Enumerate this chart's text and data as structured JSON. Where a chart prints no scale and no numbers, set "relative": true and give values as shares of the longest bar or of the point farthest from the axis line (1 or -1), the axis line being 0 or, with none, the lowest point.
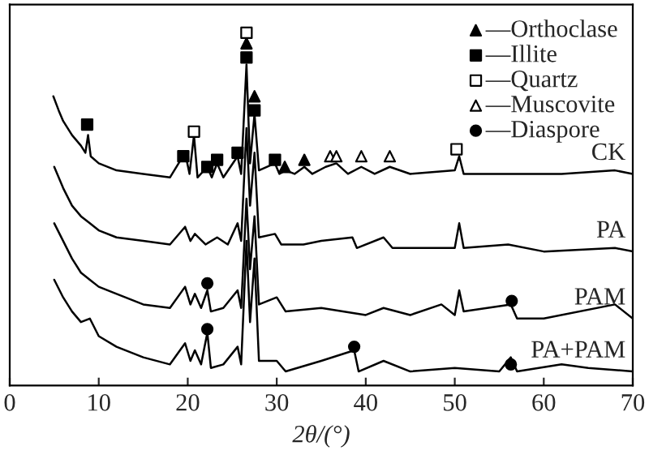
{
  "chart_data": {
    "type": "line",
    "relative": true,
    "xlabel": "2θ/(°)",
    "xlim": [
      0,
      70
    ],
    "xticks": [
      0,
      10,
      20,
      30,
      40,
      50,
      60,
      70
    ],
    "legend": "top right",
    "grid": false,
    "line_style": "solid",
    "series": [
      {
        "name": "CK",
        "color": "#000000",
        "marker": "none",
        "x": [
          4.9,
          5.5,
          6,
          7,
          8,
          8.5,
          8.8,
          9.1,
          10,
          12,
          15,
          18,
          19.7,
          20.2,
          20.7,
          21.1,
          22.2,
          22.7,
          23.3,
          24,
          25.6,
          26,
          26.6,
          27.0,
          27.5,
          28,
          29.8,
          30.3,
          31,
          32,
          33.1,
          34,
          35.5,
          36.7,
          38,
          39.5,
          41,
          42.7,
          45,
          50,
          50.5,
          51,
          55,
          60,
          62,
          68,
          70
        ],
        "values": [
          0.82,
          0.78,
          0.75,
          0.71,
          0.68,
          0.66,
          0.71,
          0.65,
          0.63,
          0.61,
          0.6,
          0.59,
          0.66,
          0.6,
          0.71,
          0.59,
          0.62,
          0.59,
          0.63,
          0.59,
          0.65,
          0.6,
          0.91,
          0.63,
          0.77,
          0.61,
          0.63,
          0.6,
          0.61,
          0.6,
          0.62,
          0.6,
          0.62,
          0.63,
          0.6,
          0.62,
          0.6,
          0.62,
          0.6,
          0.61,
          0.65,
          0.6,
          0.6,
          0.6,
          0.6,
          0.61,
          0.6
        ]
      },
      {
        "name": "PA",
        "color": "#000000",
        "marker": "none",
        "x": [
          5,
          6,
          7,
          8,
          9,
          10,
          12,
          15,
          18,
          19.7,
          20.3,
          20.8,
          22,
          23.3,
          24.5,
          25.6,
          26,
          26.6,
          27,
          27.5,
          28,
          29.8,
          30.5,
          33,
          35,
          38.5,
          39,
          42,
          43,
          50,
          50.5,
          51,
          56,
          60,
          68,
          70
        ],
        "values": [
          0.62,
          0.56,
          0.51,
          0.48,
          0.46,
          0.44,
          0.42,
          0.41,
          0.4,
          0.45,
          0.41,
          0.43,
          0.4,
          0.42,
          0.4,
          0.46,
          0.41,
          0.73,
          0.51,
          0.66,
          0.42,
          0.43,
          0.4,
          0.4,
          0.41,
          0.42,
          0.39,
          0.42,
          0.39,
          0.39,
          0.46,
          0.39,
          0.4,
          0.38,
          0.39,
          0.38
        ]
      },
      {
        "name": "PAM",
        "color": "#000000",
        "marker": "none",
        "x": [
          5,
          6,
          7,
          8,
          9,
          10,
          12,
          15,
          18,
          19.7,
          20.3,
          20.8,
          21.5,
          22.2,
          22.6,
          24,
          25.6,
          26,
          26.6,
          27,
          27.5,
          28,
          30,
          31,
          35,
          40,
          42,
          45,
          48.5,
          50,
          50.5,
          51,
          56.3,
          57,
          60,
          68,
          70
        ],
        "values": [
          0.46,
          0.41,
          0.36,
          0.32,
          0.3,
          0.28,
          0.26,
          0.23,
          0.22,
          0.28,
          0.23,
          0.26,
          0.22,
          0.27,
          0.21,
          0.22,
          0.27,
          0.22,
          0.53,
          0.33,
          0.48,
          0.23,
          0.25,
          0.21,
          0.22,
          0.2,
          0.22,
          0.2,
          0.23,
          0.2,
          0.27,
          0.21,
          0.23,
          0.19,
          0.19,
          0.23,
          0.19
        ]
      },
      {
        "name": "PA+PAM",
        "color": "#000000",
        "marker": "none",
        "x": [
          5,
          6,
          7,
          8,
          9,
          10,
          12,
          15,
          18,
          19.7,
          20.3,
          20.8,
          21.5,
          22.2,
          22.6,
          24,
          25.6,
          26,
          26.6,
          27,
          27.5,
          28,
          30,
          31,
          35,
          38.7,
          39.2,
          42,
          45,
          50,
          55,
          56.3,
          57,
          62,
          65,
          70
        ],
        "values": [
          0.3,
          0.25,
          0.21,
          0.18,
          0.19,
          0.14,
          0.11,
          0.08,
          0.06,
          0.12,
          0.07,
          0.1,
          0.06,
          0.15,
          0.05,
          0.06,
          0.11,
          0.06,
          0.41,
          0.18,
          0.36,
          0.07,
          0.07,
          0.04,
          0.07,
          0.1,
          0.04,
          0.07,
          0.04,
          0.05,
          0.04,
          0.08,
          0.04,
          0.06,
          0.05,
          0.04
        ]
      },
      {
        "name": "—Orthoclase",
        "type": "scatter",
        "color": "#000000",
        "marker": "triangle",
        "x": [
          26.6,
          27.5,
          30.9,
          33.1
        ],
        "values": [
          0.97,
          0.82,
          0.62,
          0.64
        ]
      },
      {
        "name": "—Illite",
        "type": "scatter",
        "color": "#000000",
        "marker": "square",
        "x": [
          8.7,
          19.5,
          22.2,
          23.3,
          25.6,
          26.6,
          27.5,
          29.8
        ],
        "values": [
          0.74,
          0.65,
          0.62,
          0.64,
          0.66,
          0.93,
          0.78,
          0.64
        ]
      },
      {
        "name": "—Quartz",
        "type": "scatter",
        "color": "#ffffff",
        "marker": "square",
        "x": [
          20.7,
          26.6,
          50.2
        ],
        "values": [
          0.72,
          1.0,
          0.67
        ]
      },
      {
        "name": "—Muscovite",
        "type": "scatter",
        "color": "#ffffff",
        "marker": "triangle",
        "x": [
          36,
          36.7,
          39.5,
          42.7
        ],
        "values": [
          0.65,
          0.65,
          0.65,
          0.65
        ]
      },
      {
        "name": "—Diaspore",
        "type": "scatter",
        "color": "#000000",
        "marker": "circle",
        "x": [
          22.2,
          56.4,
          22.2,
          38.7,
          56.3
        ],
        "values": [
          0.29,
          0.24,
          0.16,
          0.11,
          0.06
        ]
      }
    ]
  }
}
